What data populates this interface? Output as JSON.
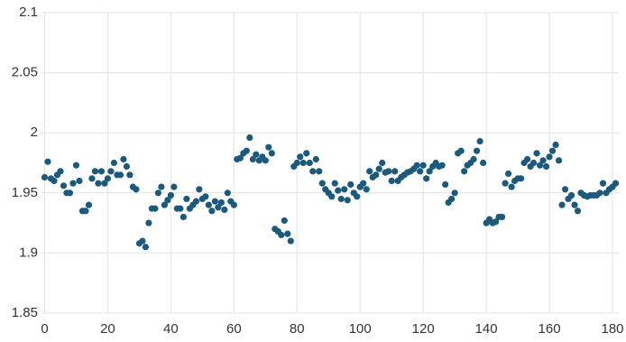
{
  "chart_data": {
    "type": "scatter",
    "color": "#1c5a7d",
    "grid": true,
    "xlim": [
      -1,
      182
    ],
    "ylim": [
      1.85,
      2.1
    ],
    "xticks": [
      0,
      20,
      40,
      60,
      80,
      100,
      120,
      140,
      160,
      180
    ],
    "yticks": [
      1.85,
      1.9,
      1.95,
      2,
      2.05,
      2.1
    ],
    "x": [
      0,
      1,
      2,
      3,
      4,
      5,
      6,
      7,
      8,
      9,
      10,
      11,
      12,
      13,
      14,
      15,
      16,
      17,
      18,
      19,
      20,
      21,
      22,
      23,
      24,
      25,
      26,
      27,
      28,
      29,
      30,
      31,
      32,
      33,
      34,
      35,
      36,
      37,
      38,
      39,
      40,
      41,
      42,
      43,
      44,
      45,
      46,
      47,
      48,
      49,
      50,
      51,
      52,
      53,
      54,
      55,
      56,
      57,
      58,
      59,
      60,
      61,
      62,
      63,
      64,
      65,
      66,
      67,
      68,
      69,
      70,
      71,
      72,
      73,
      74,
      75,
      76,
      77,
      78,
      79,
      80,
      81,
      82,
      83,
      84,
      85,
      86,
      87,
      88,
      89,
      90,
      91,
      92,
      93,
      94,
      95,
      96,
      97,
      98,
      99,
      100,
      101,
      102,
      103,
      104,
      105,
      106,
      107,
      108,
      109,
      110,
      111,
      112,
      113,
      114,
      115,
      116,
      117,
      118,
      119,
      120,
      121,
      122,
      123,
      124,
      125,
      126,
      127,
      128,
      129,
      130,
      131,
      132,
      133,
      134,
      135,
      136,
      137,
      138,
      139,
      140,
      141,
      142,
      143,
      144,
      145,
      146,
      147,
      148,
      149,
      150,
      151,
      152,
      153,
      154,
      155,
      156,
      157,
      158,
      159,
      160,
      161,
      162,
      163,
      164,
      165,
      166,
      167,
      168,
      169,
      170,
      171,
      172,
      173,
      174,
      175,
      176,
      177,
      178,
      179,
      180,
      181
    ],
    "values": [
      1.963,
      1.976,
      1.962,
      1.96,
      1.965,
      1.968,
      1.956,
      1.95,
      1.95,
      1.958,
      1.973,
      1.96,
      1.935,
      1.935,
      1.94,
      1.962,
      1.968,
      1.958,
      1.968,
      1.958,
      1.962,
      1.968,
      1.975,
      1.965,
      1.965,
      1.978,
      1.972,
      1.965,
      1.955,
      1.953,
      1.908,
      1.91,
      1.905,
      1.925,
      1.937,
      1.937,
      1.95,
      1.955,
      1.94,
      1.944,
      1.948,
      1.955,
      1.937,
      1.937,
      1.93,
      1.945,
      1.937,
      1.94,
      1.943,
      1.953,
      1.945,
      1.947,
      1.94,
      1.935,
      1.943,
      1.938,
      1.942,
      1.936,
      1.95,
      1.943,
      1.94,
      1.978,
      1.979,
      1.983,
      1.985,
      1.996,
      1.978,
      1.982,
      1.977,
      1.98,
      1.977,
      1.988,
      1.983,
      1.92,
      1.918,
      1.915,
      1.927,
      1.916,
      1.91,
      1.972,
      1.975,
      1.98,
      1.975,
      1.983,
      1.975,
      1.968,
      1.978,
      1.968,
      1.958,
      1.953,
      1.95,
      1.947,
      1.958,
      1.952,
      1.945,
      1.953,
      1.944,
      1.957,
      1.95,
      1.947,
      1.955,
      1.958,
      1.953,
      1.968,
      1.963,
      1.965,
      1.97,
      1.975,
      1.967,
      1.968,
      1.96,
      1.968,
      1.96,
      1.963,
      1.965,
      1.967,
      1.968,
      1.97,
      1.973,
      1.968,
      1.973,
      1.962,
      1.968,
      1.972,
      1.975,
      1.972,
      1.973,
      1.957,
      1.942,
      1.945,
      1.95,
      1.983,
      1.985,
      1.968,
      1.973,
      1.975,
      1.978,
      1.985,
      1.993,
      1.975,
      1.925,
      1.928,
      1.925,
      1.926,
      1.93,
      1.93,
      1.958,
      1.966,
      1.955,
      1.96,
      1.962,
      1.962,
      1.975,
      1.978,
      1.972,
      1.975,
      1.983,
      1.973,
      1.977,
      1.972,
      1.98,
      1.985,
      1.99,
      1.977,
      1.94,
      1.953,
      1.945,
      1.948,
      1.94,
      1.935,
      1.95,
      1.948,
      1.947,
      1.948,
      1.948,
      1.948,
      1.95,
      1.958,
      1.95,
      1.953,
      1.955,
      1.958
    ]
  }
}
